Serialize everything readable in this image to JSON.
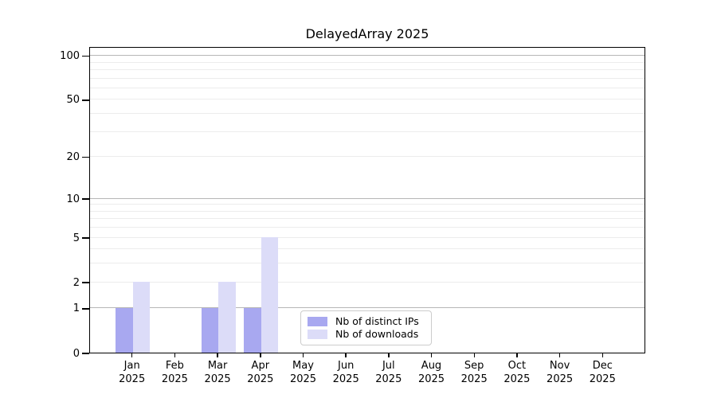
{
  "chart_data": {
    "type": "bar",
    "title": "DelayedArray 2025",
    "categories": [
      "Jan",
      "Feb",
      "Mar",
      "Apr",
      "May",
      "Jun",
      "Jul",
      "Aug",
      "Sep",
      "Oct",
      "Nov",
      "Dec"
    ],
    "x_sublabel": "2025",
    "series": [
      {
        "name": "Nb of distinct IPs",
        "color": "#a8a8f0",
        "values": [
          1,
          0,
          1,
          1,
          0,
          0,
          0,
          0,
          0,
          0,
          0,
          0
        ]
      },
      {
        "name": "Nb of downloads",
        "color": "#dcdcf8",
        "values": [
          2,
          0,
          2,
          5,
          0,
          0,
          0,
          0,
          0,
          0,
          0,
          0
        ]
      }
    ],
    "yscale": "log10(1+x)",
    "yticks": [
      0,
      1,
      2,
      5,
      10,
      20,
      50,
      100
    ],
    "ylim": [
      0,
      115
    ],
    "grid": {
      "major_values": [
        1,
        10,
        100
      ],
      "minor_values": [
        2,
        3,
        4,
        5,
        6,
        7,
        8,
        9,
        20,
        30,
        40,
        50,
        60,
        70,
        80,
        90
      ],
      "major_color": "#b6b6b6",
      "minor_color": "#ececec"
    },
    "legend": {
      "position": "lower center",
      "border_color": "#cccccc"
    },
    "axis_color": "#000000"
  }
}
